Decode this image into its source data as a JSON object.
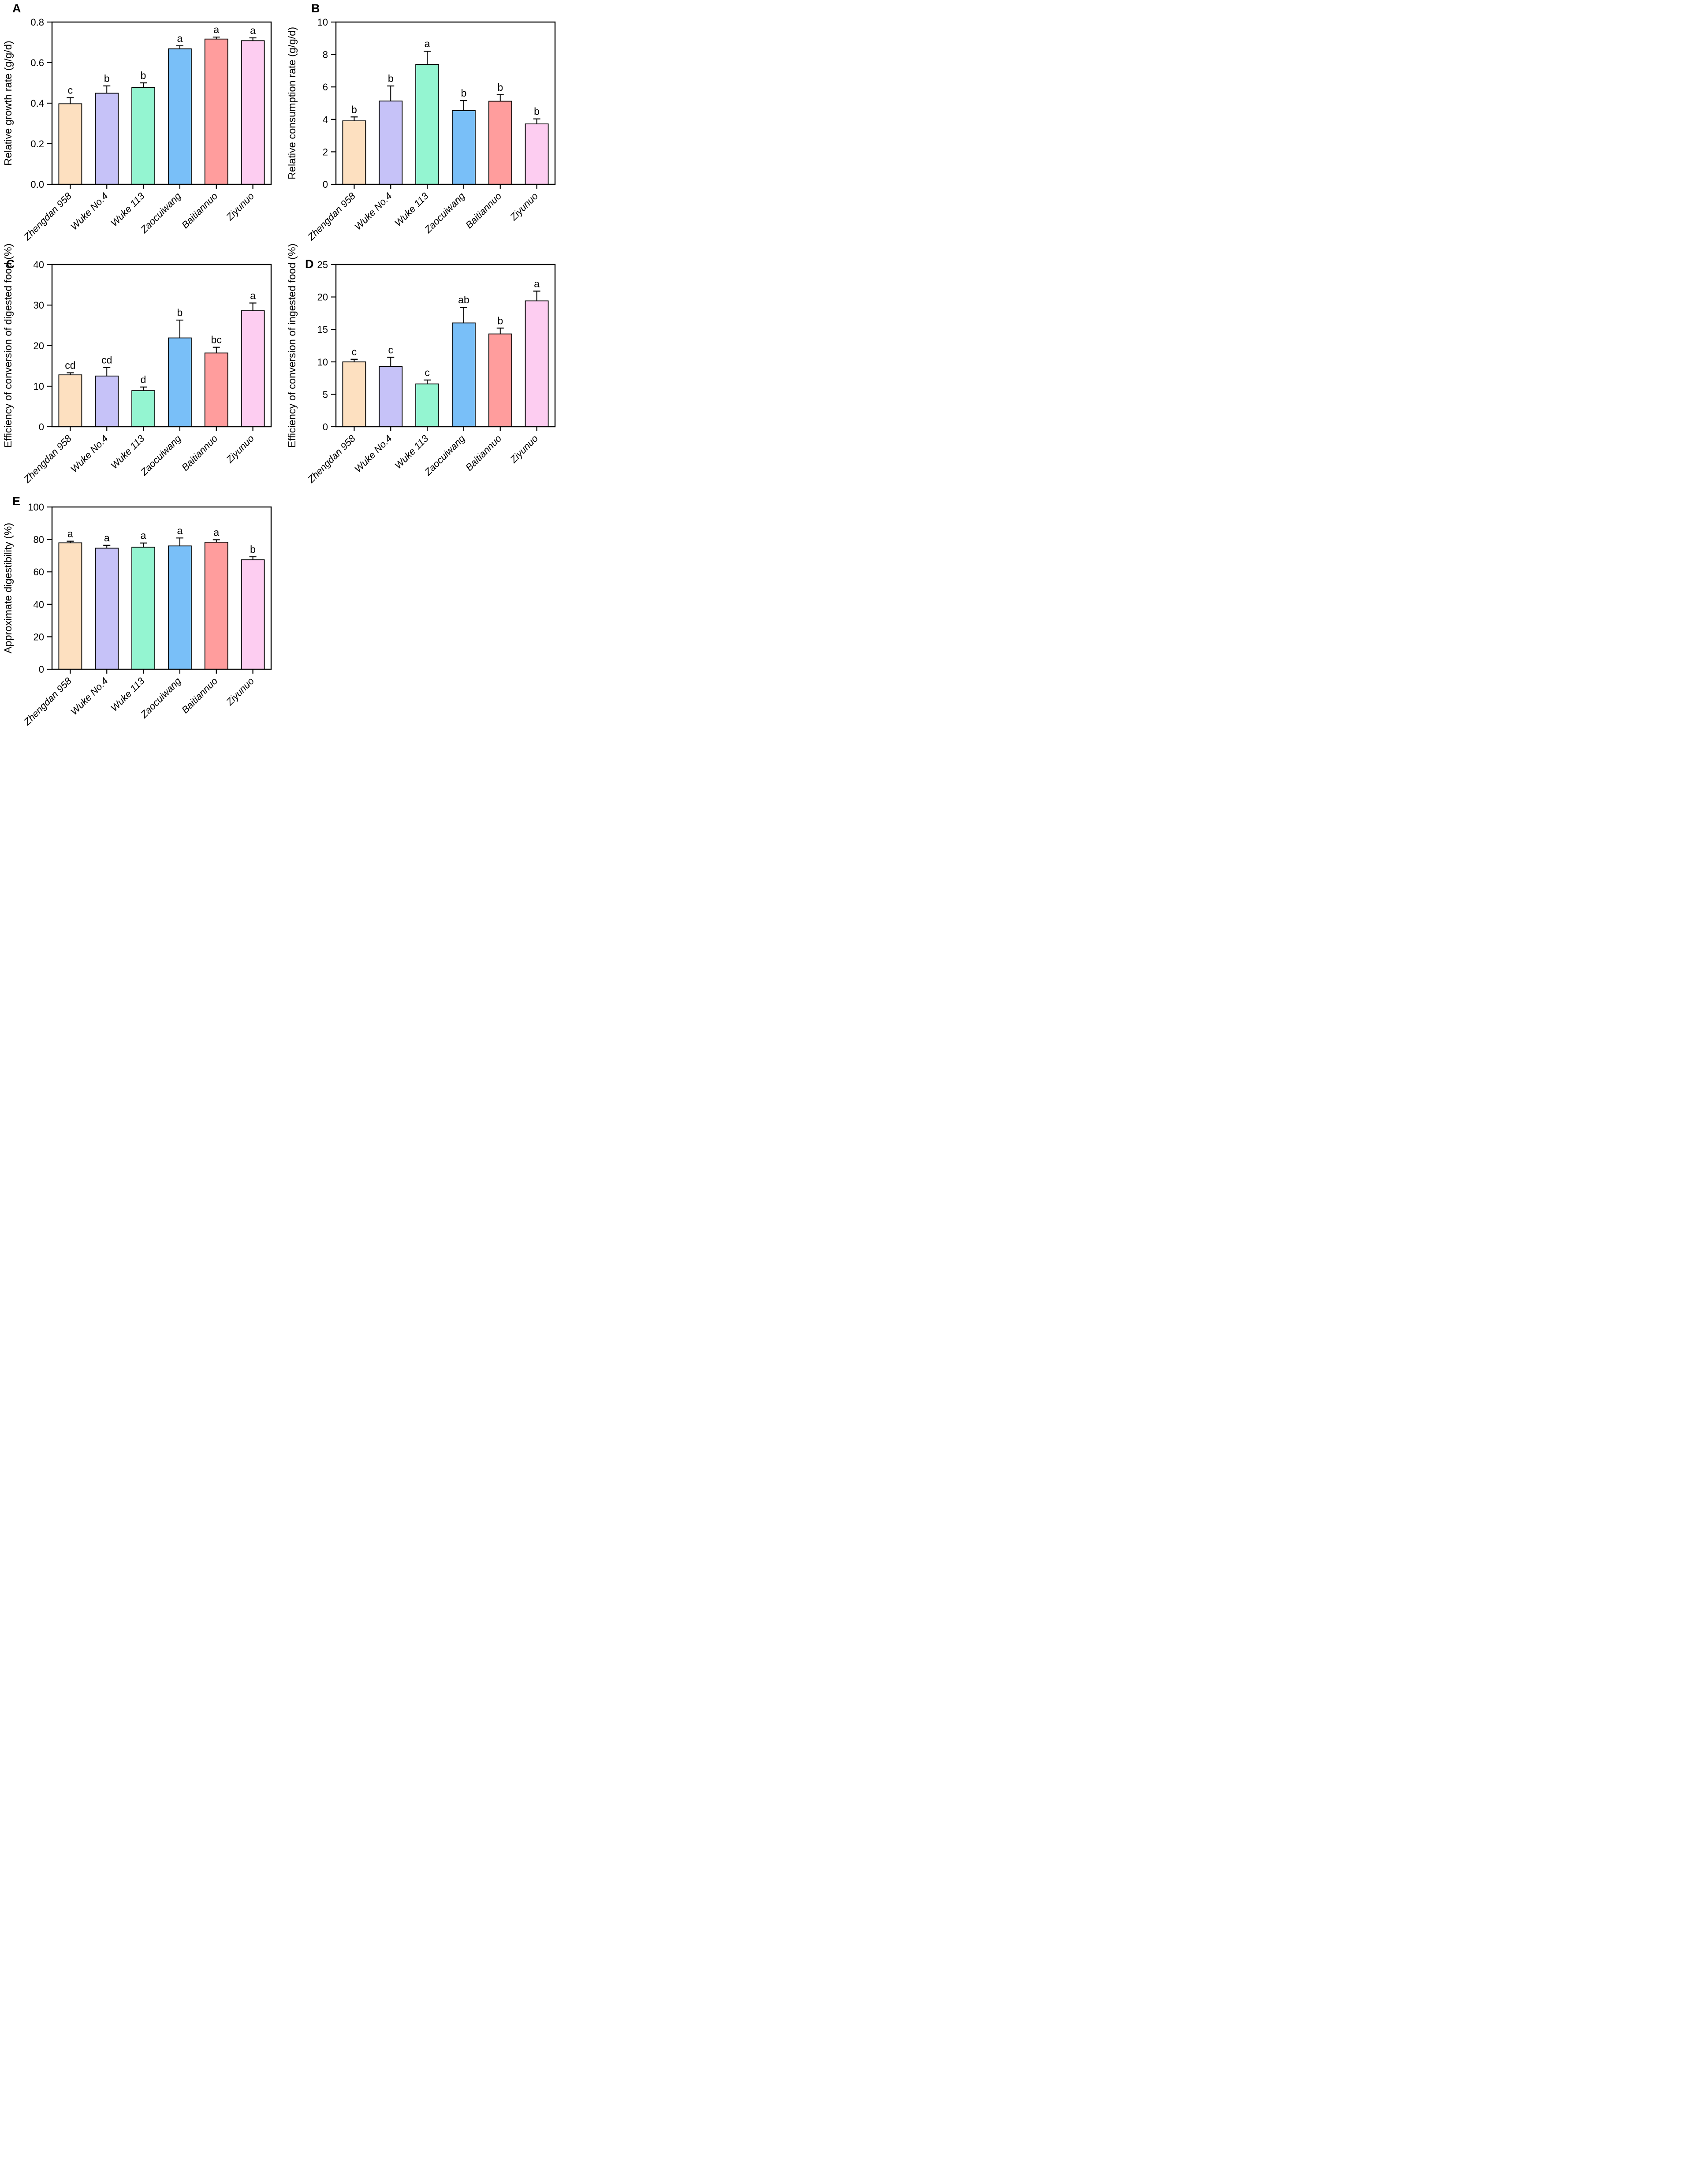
{
  "page": {
    "background": "#FFFFFF"
  },
  "palette": {
    "bar_fills": [
      "#FDE0C0",
      "#C6C2F8",
      "#94F5D1",
      "#79BFF8",
      "#FF9D9D",
      "#FDCDF1"
    ],
    "bar_edge": "#000000",
    "axis_color": "#000000",
    "text_color": "#000000"
  },
  "chart_data": [
    {
      "panel": "A",
      "type": "bar",
      "title": "",
      "ylabel": "Relative growth rate (g/g/d)",
      "ylim": [
        0,
        0.8
      ],
      "yticks": [
        "0.0",
        "0.2",
        "0.4",
        "0.6",
        "0.8"
      ],
      "grid": "off",
      "categories": [
        "Zhengdan 958",
        "Wuke No.4",
        "Wuke 113",
        "Zaocuiwang",
        "Baitiannuo",
        "Ziyunuo"
      ],
      "values": [
        0.397,
        0.449,
        0.478,
        0.668,
        0.716,
        0.708
      ],
      "errors_upper": [
        0.03,
        0.036,
        0.022,
        0.015,
        0.01,
        0.014
      ],
      "sig_letters": [
        "c",
        "b",
        "b",
        "a",
        "a",
        "a"
      ]
    },
    {
      "panel": "B",
      "type": "bar",
      "title": "",
      "ylabel": "Relative consumption rate (g/g/d)",
      "ylim": [
        0,
        10
      ],
      "yticks": [
        "0",
        "2",
        "4",
        "6",
        "8",
        "10"
      ],
      "grid": "off",
      "categories": [
        "Zhengdan 958",
        "Wuke No.4",
        "Wuke 113",
        "Zaocuiwang",
        "Baitiannuo",
        "Ziyunuo"
      ],
      "values": [
        3.91,
        5.13,
        7.39,
        4.54,
        5.12,
        3.72
      ],
      "errors_upper": [
        0.24,
        0.93,
        0.81,
        0.62,
        0.4,
        0.31
      ],
      "sig_letters": [
        "b",
        "b",
        "a",
        "b",
        "b",
        "b"
      ]
    },
    {
      "panel": "C",
      "type": "bar",
      "title": "",
      "ylabel": "Efficiency of conversion of digested food (%)",
      "ylim": [
        0,
        40
      ],
      "yticks": [
        "0",
        "10",
        "20",
        "30",
        "40"
      ],
      "grid": "off",
      "categories": [
        "Zhengdan 958",
        "Wuke No.4",
        "Wuke 113",
        "Zaocuiwang",
        "Baitiannuo",
        "Ziyunuo"
      ],
      "values": [
        12.8,
        12.5,
        8.9,
        21.9,
        18.2,
        28.6
      ],
      "errors_upper": [
        0.5,
        2.1,
        0.9,
        4.4,
        1.4,
        1.9
      ],
      "sig_letters": [
        "cd",
        "cd",
        "d",
        "b",
        "bc",
        "a"
      ]
    },
    {
      "panel": "D",
      "type": "bar",
      "title": "",
      "ylabel": "Efficiency of conversion of ingested food (%)",
      "ylim": [
        0,
        25
      ],
      "yticks": [
        "0",
        "5",
        "10",
        "15",
        "20",
        "25"
      ],
      "grid": "off",
      "categories": [
        "Zhengdan 958",
        "Wuke No.4",
        "Wuke 113",
        "Zaocuiwang",
        "Baitiannuo",
        "Ziyunuo"
      ],
      "values": [
        10.0,
        9.3,
        6.6,
        16.0,
        14.3,
        19.4
      ],
      "errors_upper": [
        0.4,
        1.4,
        0.6,
        2.4,
        0.9,
        1.5
      ],
      "sig_letters": [
        "c",
        "c",
        "c",
        "ab",
        "b",
        "a"
      ]
    },
    {
      "panel": "E",
      "type": "bar",
      "title": "",
      "ylabel": "Approximate digestibility (%)",
      "ylim": [
        0,
        100
      ],
      "yticks": [
        "0",
        "20",
        "40",
        "60",
        "80",
        "100"
      ],
      "grid": "off",
      "categories": [
        "Zhengdan 958",
        "Wuke No.4",
        "Wuke 113",
        "Zaocuiwang",
        "Baitiannuo",
        "Ziyunuo"
      ],
      "values": [
        77.9,
        74.6,
        75.2,
        76.0,
        78.3,
        67.5
      ],
      "errors_upper": [
        1.0,
        1.8,
        2.6,
        4.9,
        1.5,
        1.8
      ],
      "sig_letters": [
        "a",
        "a",
        "a",
        "a",
        "a",
        "b"
      ]
    }
  ],
  "panel_letters": {
    "a": "A",
    "b": "B",
    "c": "C",
    "d": "D",
    "e": "E"
  }
}
